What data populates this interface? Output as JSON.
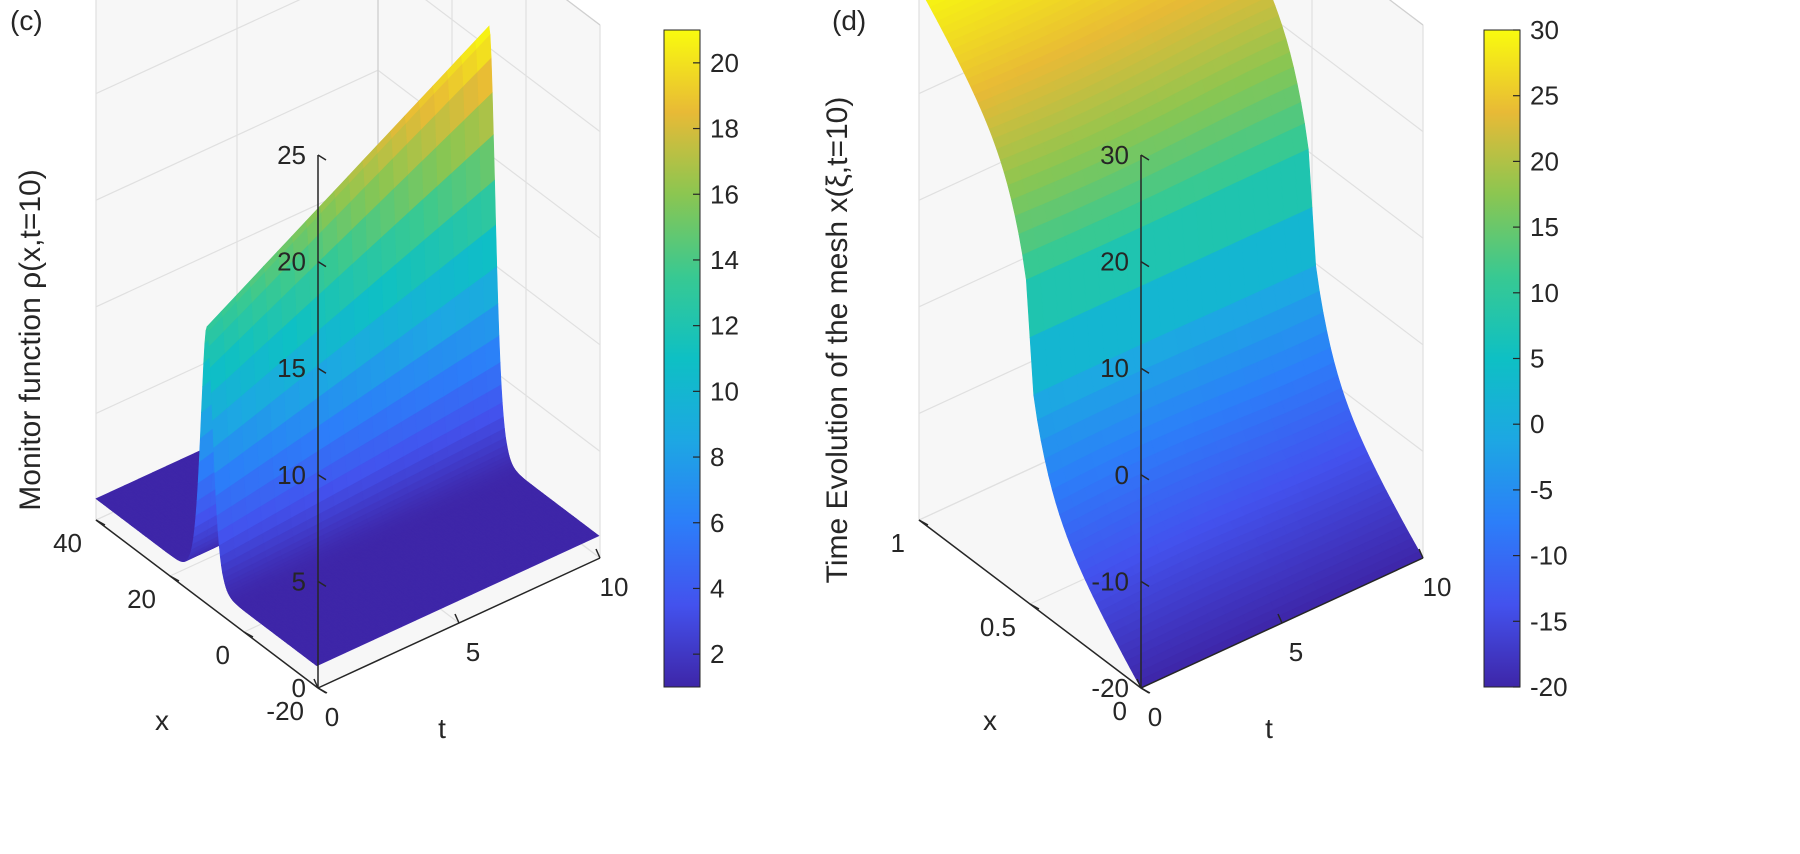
{
  "chart_data": [
    {
      "panel_label": "(c)",
      "type": "surface",
      "title": "",
      "zlabel": "Monitor function ρ(x,t=10)",
      "xlabel": "x",
      "tlabel": "t",
      "x_range": [
        -20,
        40
      ],
      "t_range": [
        0,
        10
      ],
      "z_range": [
        0,
        25
      ],
      "x_ticks": [
        "-20",
        "0",
        "20",
        "40"
      ],
      "t_ticks": [
        "0",
        "5",
        "10"
      ],
      "z_ticks": [
        "0",
        "5",
        "10",
        "15",
        "20",
        "25"
      ],
      "surface": {
        "description": "soliton ridge whose peak grows linearly with t",
        "ridge_center_x": 10,
        "ridge_half_width_x": 2.2,
        "baseline_value": 1,
        "peak_at_t0": 13,
        "peak_at_t10": 21
      },
      "colorbar": {
        "range": [
          1,
          21
        ],
        "ticks": [
          "2",
          "4",
          "6",
          "8",
          "10",
          "12",
          "14",
          "16",
          "18",
          "20"
        ]
      }
    },
    {
      "panel_label": "(d)",
      "type": "surface",
      "title": "",
      "zlabel": "Time Evolution of the mesh x(ξ,t=10)",
      "xlabel": "x",
      "tlabel": "t",
      "x_range": [
        0,
        1
      ],
      "t_range": [
        0,
        10
      ],
      "z_range": [
        -20,
        30
      ],
      "x_ticks": [
        "0",
        "0.5",
        "1"
      ],
      "t_ticks": [
        "0",
        "5",
        "10"
      ],
      "z_ticks": [
        "-20",
        "-10",
        "0",
        "10",
        "20",
        "30"
      ],
      "surface": {
        "description": "mesh map from xi in [0,1] to x in [-20,30], steep near the ends",
        "x_min": -20,
        "x_max": 30,
        "flat_center": 5
      },
      "colorbar": {
        "range": [
          -20,
          30
        ],
        "ticks": [
          "-20",
          "-15",
          "-10",
          "-5",
          "0",
          "5",
          "10",
          "15",
          "20",
          "25",
          "30"
        ]
      }
    }
  ]
}
